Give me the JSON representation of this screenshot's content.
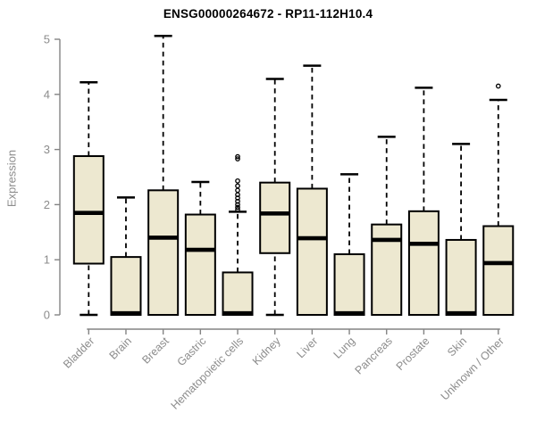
{
  "title": "ENSG00000264672 - RP11-112H10.4",
  "chart_data": {
    "type": "boxplot",
    "title": "ENSG00000264672 - RP11-112H10.4",
    "xlabel": "",
    "ylabel": "Expression",
    "ylim": [
      0,
      5
    ],
    "yticks": [
      0,
      1,
      2,
      3,
      4,
      5
    ],
    "grid": false,
    "legend": "none",
    "categories": [
      "Bladder",
      "Brain",
      "Breast",
      "Gastric",
      "Hematopoietic cells",
      "Kidney",
      "Liver",
      "Lung",
      "Pancreas",
      "Prostate",
      "Skin",
      "Unknown / Other"
    ],
    "series": [
      {
        "name": "Bladder",
        "whisker_low": 0,
        "q1": 0.93,
        "median": 1.85,
        "q3": 2.88,
        "whisker_high": 4.22,
        "outliers": []
      },
      {
        "name": "Brain",
        "whisker_low": 0,
        "q1": 0,
        "median": 0.03,
        "q3": 1.05,
        "whisker_high": 2.13,
        "outliers": []
      },
      {
        "name": "Breast",
        "whisker_low": 0,
        "q1": 0,
        "median": 1.4,
        "q3": 2.26,
        "whisker_high": 5.06,
        "outliers": []
      },
      {
        "name": "Gastric",
        "whisker_low": 0,
        "q1": 0,
        "median": 1.18,
        "q3": 1.82,
        "whisker_high": 2.41,
        "outliers": []
      },
      {
        "name": "Hematopoietic cells",
        "whisker_low": 0,
        "q1": 0,
        "median": 0.03,
        "q3": 0.77,
        "whisker_high": 1.87,
        "outliers": [
          2.87,
          2.83,
          2.43,
          2.34,
          2.26,
          2.18,
          2.12,
          2.06,
          2.0,
          1.95,
          1.91
        ]
      },
      {
        "name": "Kidney",
        "whisker_low": 0,
        "q1": 1.12,
        "median": 1.84,
        "q3": 2.4,
        "whisker_high": 4.28,
        "outliers": []
      },
      {
        "name": "Liver",
        "whisker_low": 0,
        "q1": 0,
        "median": 1.39,
        "q3": 2.29,
        "whisker_high": 4.52,
        "outliers": []
      },
      {
        "name": "Lung",
        "whisker_low": 0,
        "q1": 0,
        "median": 0.03,
        "q3": 1.1,
        "whisker_high": 2.55,
        "outliers": []
      },
      {
        "name": "Pancreas",
        "whisker_low": 0,
        "q1": 0,
        "median": 1.36,
        "q3": 1.64,
        "whisker_high": 3.23,
        "outliers": []
      },
      {
        "name": "Prostate",
        "whisker_low": 0,
        "q1": 0,
        "median": 1.29,
        "q3": 1.88,
        "whisker_high": 4.12,
        "outliers": []
      },
      {
        "name": "Skin",
        "whisker_low": 0,
        "q1": 0,
        "median": 0.03,
        "q3": 1.36,
        "whisker_high": 3.1,
        "outliers": []
      },
      {
        "name": "Unknown / Other",
        "whisker_low": 0,
        "q1": 0,
        "median": 0.94,
        "q3": 1.61,
        "whisker_high": 3.9,
        "outliers": [
          4.15
        ]
      }
    ],
    "colors": {
      "background": "#ffffff",
      "box_fill": "#ede8d0",
      "box_stroke": "#000000",
      "median": "#000000",
      "whisker": "#000000",
      "outlier": "#000000",
      "axis_line": "#848484",
      "axis_text": "#8c8c8c",
      "title_text": "#000000"
    }
  }
}
